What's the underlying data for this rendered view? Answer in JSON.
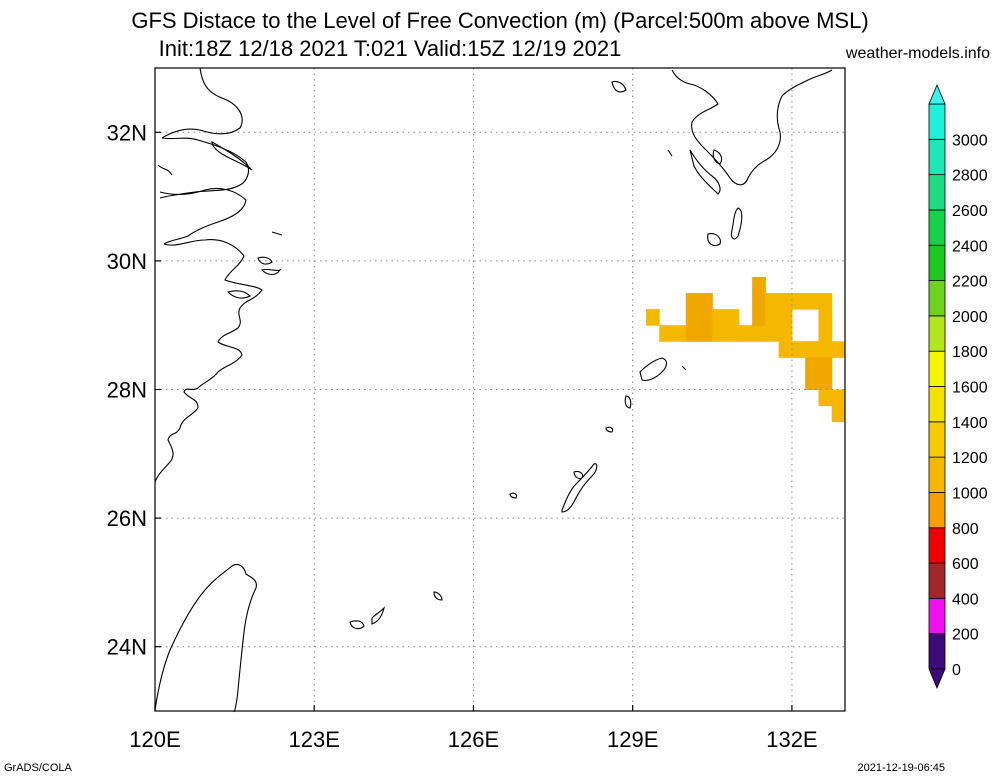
{
  "title_line1": "GFS Distace to the Level of Free Convection (m) (Parcel:500m above MSL)",
  "title_line2": "Init:18Z 12/18 2021 T:021 Valid:15Z 12/19 2021",
  "website": "weather-models.info",
  "footer_left": "GrADS/COLA",
  "footer_right": "2021-12-19-06:45",
  "map": {
    "lon_range": [
      120,
      133
    ],
    "lat_range": [
      23,
      33
    ],
    "lon_ticks": [
      {
        "value": 120,
        "label": "120E"
      },
      {
        "value": 123,
        "label": "123E"
      },
      {
        "value": 126,
        "label": "126E"
      },
      {
        "value": 129,
        "label": "129E"
      },
      {
        "value": 132,
        "label": "132E"
      }
    ],
    "lat_ticks": [
      {
        "value": 24,
        "label": "24N"
      },
      {
        "value": 26,
        "label": "26N"
      },
      {
        "value": 28,
        "label": "28N"
      },
      {
        "value": 30,
        "label": "30N"
      },
      {
        "value": 32,
        "label": "32N"
      }
    ],
    "grid": true,
    "field_cells": [
      {
        "lon": [
          129.25,
          129.5
        ],
        "lat": [
          29.0,
          29.25
        ],
        "color": "#f5b800"
      },
      {
        "lon": [
          129.5,
          130.0
        ],
        "lat": [
          28.75,
          29.0
        ],
        "color": "#f5b800"
      },
      {
        "lon": [
          130.0,
          130.5
        ],
        "lat": [
          28.75,
          29.5
        ],
        "color": "#f0a800"
      },
      {
        "lon": [
          130.5,
          131.0
        ],
        "lat": [
          28.75,
          29.25
        ],
        "color": "#f5b800"
      },
      {
        "lon": [
          131.0,
          131.5
        ],
        "lat": [
          28.75,
          29.0
        ],
        "color": "#f5b800"
      },
      {
        "lon": [
          131.25,
          131.5
        ],
        "lat": [
          29.0,
          29.75
        ],
        "color": "#f0a800"
      },
      {
        "lon": [
          131.5,
          132.0
        ],
        "lat": [
          28.75,
          29.5
        ],
        "color": "#f5b800"
      },
      {
        "lon": [
          132.0,
          132.5
        ],
        "lat": [
          29.25,
          29.5
        ],
        "color": "#f5b800"
      },
      {
        "lon": [
          132.5,
          132.75
        ],
        "lat": [
          28.75,
          29.5
        ],
        "color": "#f5b800"
      },
      {
        "lon": [
          131.75,
          132.75
        ],
        "lat": [
          28.5,
          28.75
        ],
        "color": "#f5b800"
      },
      {
        "lon": [
          132.25,
          133.0
        ],
        "lat": [
          28.5,
          28.75
        ],
        "color": "#f5b800"
      },
      {
        "lon": [
          132.25,
          132.75
        ],
        "lat": [
          28.0,
          28.5
        ],
        "color": "#f0a800"
      },
      {
        "lon": [
          132.5,
          133.0
        ],
        "lat": [
          27.75,
          28.0
        ],
        "color": "#f5b800"
      },
      {
        "lon": [
          132.75,
          133.0
        ],
        "lat": [
          27.5,
          27.75
        ],
        "color": "#f5b800"
      }
    ]
  },
  "colorbar": {
    "bands": [
      {
        "color": "#3d0a7a"
      },
      {
        "color": "#ee10ee"
      },
      {
        "color": "#a0282a"
      },
      {
        "color": "#ee0000"
      },
      {
        "color": "#f5a000"
      },
      {
        "color": "#f5b800"
      },
      {
        "color": "#f5cc00"
      },
      {
        "color": "#f5e100"
      },
      {
        "color": "#f5f500"
      },
      {
        "color": "#b4e61e"
      },
      {
        "color": "#6ed21e"
      },
      {
        "color": "#1ec81e"
      },
      {
        "color": "#14d24a"
      },
      {
        "color": "#1edc82"
      },
      {
        "color": "#1ee6b4"
      },
      {
        "color": "#1ef0dc"
      }
    ],
    "under_color": "#3d0a7a",
    "over_color": "#40f0f0",
    "labels": [
      "0",
      "200",
      "400",
      "600",
      "800",
      "1000",
      "1200",
      "1400",
      "1600",
      "1800",
      "2000",
      "2200",
      "2400",
      "2600",
      "2800",
      "3000"
    ]
  }
}
